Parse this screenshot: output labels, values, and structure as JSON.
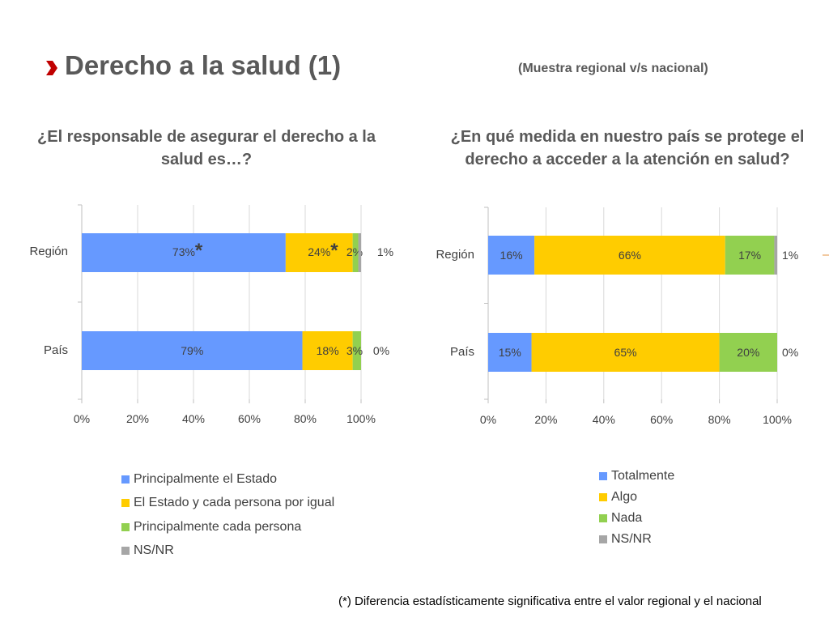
{
  "header": {
    "title": "Derecho a la salud (1)",
    "subtitle": "(Muestra regional v/s nacional)",
    "bullet_color": "#c00000"
  },
  "footnote": "(*) Diferencia estadísticamente significativa entre el valor regional y el nacional",
  "chart_data": [
    {
      "type": "bar",
      "orientation": "horizontal",
      "stacked": true,
      "title": "¿El responsable de asegurar el derecho a la salud es…?",
      "categories": [
        "Región",
        "País"
      ],
      "series": [
        {
          "name": "Principalmente el Estado",
          "color": "#6699ff",
          "values": [
            73,
            79
          ],
          "labels": [
            "73%",
            "79%"
          ],
          "significant": [
            true,
            false
          ]
        },
        {
          "name": "El Estado y cada persona por igual",
          "color": "#ffcc00",
          "values": [
            24,
            18
          ],
          "labels": [
            "24%",
            "18%"
          ],
          "significant": [
            true,
            false
          ]
        },
        {
          "name": "Principalmente cada persona",
          "color": "#92d050",
          "values": [
            2,
            3
          ],
          "labels": [
            "2%",
            "3%"
          ],
          "significant": [
            false,
            false
          ]
        },
        {
          "name": "NS/NR",
          "color": "#a6a6a6",
          "values": [
            1,
            0
          ],
          "labels": [
            "1%",
            "0%"
          ],
          "significant": [
            false,
            false
          ]
        }
      ],
      "significance_marker": "*",
      "xlim": [
        0,
        100
      ],
      "xticks": [
        "0%",
        "20%",
        "40%",
        "60%",
        "80%",
        "100%"
      ],
      "grid": true,
      "legend_position": "bottom"
    },
    {
      "type": "bar",
      "orientation": "horizontal",
      "stacked": true,
      "title": "¿En qué medida en nuestro país se protege el derecho a acceder a la atención en salud?",
      "categories": [
        "Región",
        "País"
      ],
      "series": [
        {
          "name": "Totalmente",
          "color": "#6699ff",
          "values": [
            16,
            15
          ],
          "labels": [
            "16%",
            "15%"
          ]
        },
        {
          "name": "Algo",
          "color": "#ffcc00",
          "values": [
            66,
            65
          ],
          "labels": [
            "66%",
            "65%"
          ]
        },
        {
          "name": "Nada",
          "color": "#92d050",
          "values": [
            17,
            20
          ],
          "labels": [
            "17%",
            "20%"
          ]
        },
        {
          "name": "NS/NR",
          "color": "#a6a6a6",
          "values": [
            1,
            0
          ],
          "labels": [
            "1%",
            "0%"
          ]
        }
      ],
      "xlim": [
        0,
        100
      ],
      "xticks": [
        "0%",
        "20%",
        "40%",
        "60%",
        "80%",
        "100%"
      ],
      "grid": true,
      "legend_position": "bottom"
    }
  ]
}
